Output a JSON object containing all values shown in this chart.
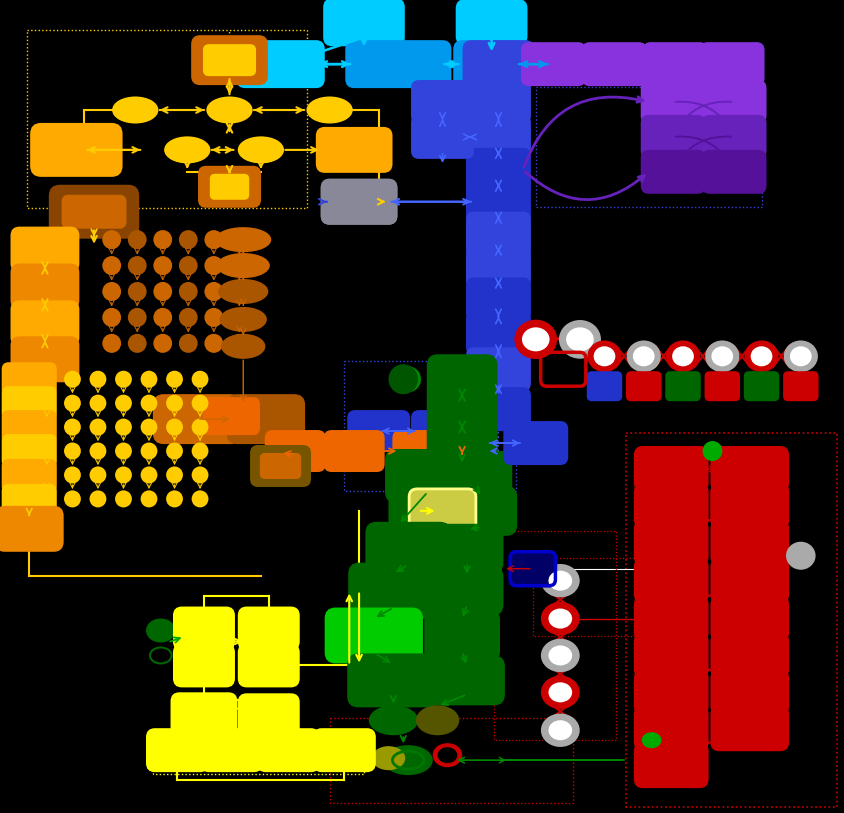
{
  "bg": "#000000",
  "fw": 8.44,
  "fh": 8.13,
  "dpi": 100,
  "colors": {
    "cyan_bright": "#00ccff",
    "cyan_mid": "#0099ee",
    "blue_dark": "#2233cc",
    "blue_mid": "#3344dd",
    "blue_light": "#4466ff",
    "purple_bright": "#8833dd",
    "purple_mid": "#6622bb",
    "purple_dark": "#551199",
    "yellow": "#ffcc00",
    "yellow2": "#ffaa00",
    "orange_brown": "#cc6600",
    "brown": "#884400",
    "brown2": "#aa5500",
    "orange": "#ee6600",
    "dark_green": "#006600",
    "dark_green2": "#004400",
    "med_green": "#008800",
    "bright_green": "#00cc00",
    "red": "#cc0000",
    "red2": "#aa0000",
    "gray": "#aaaaaa",
    "white": "#ffffff",
    "bright_yellow": "#ffff00",
    "grad_node": "#888899"
  }
}
